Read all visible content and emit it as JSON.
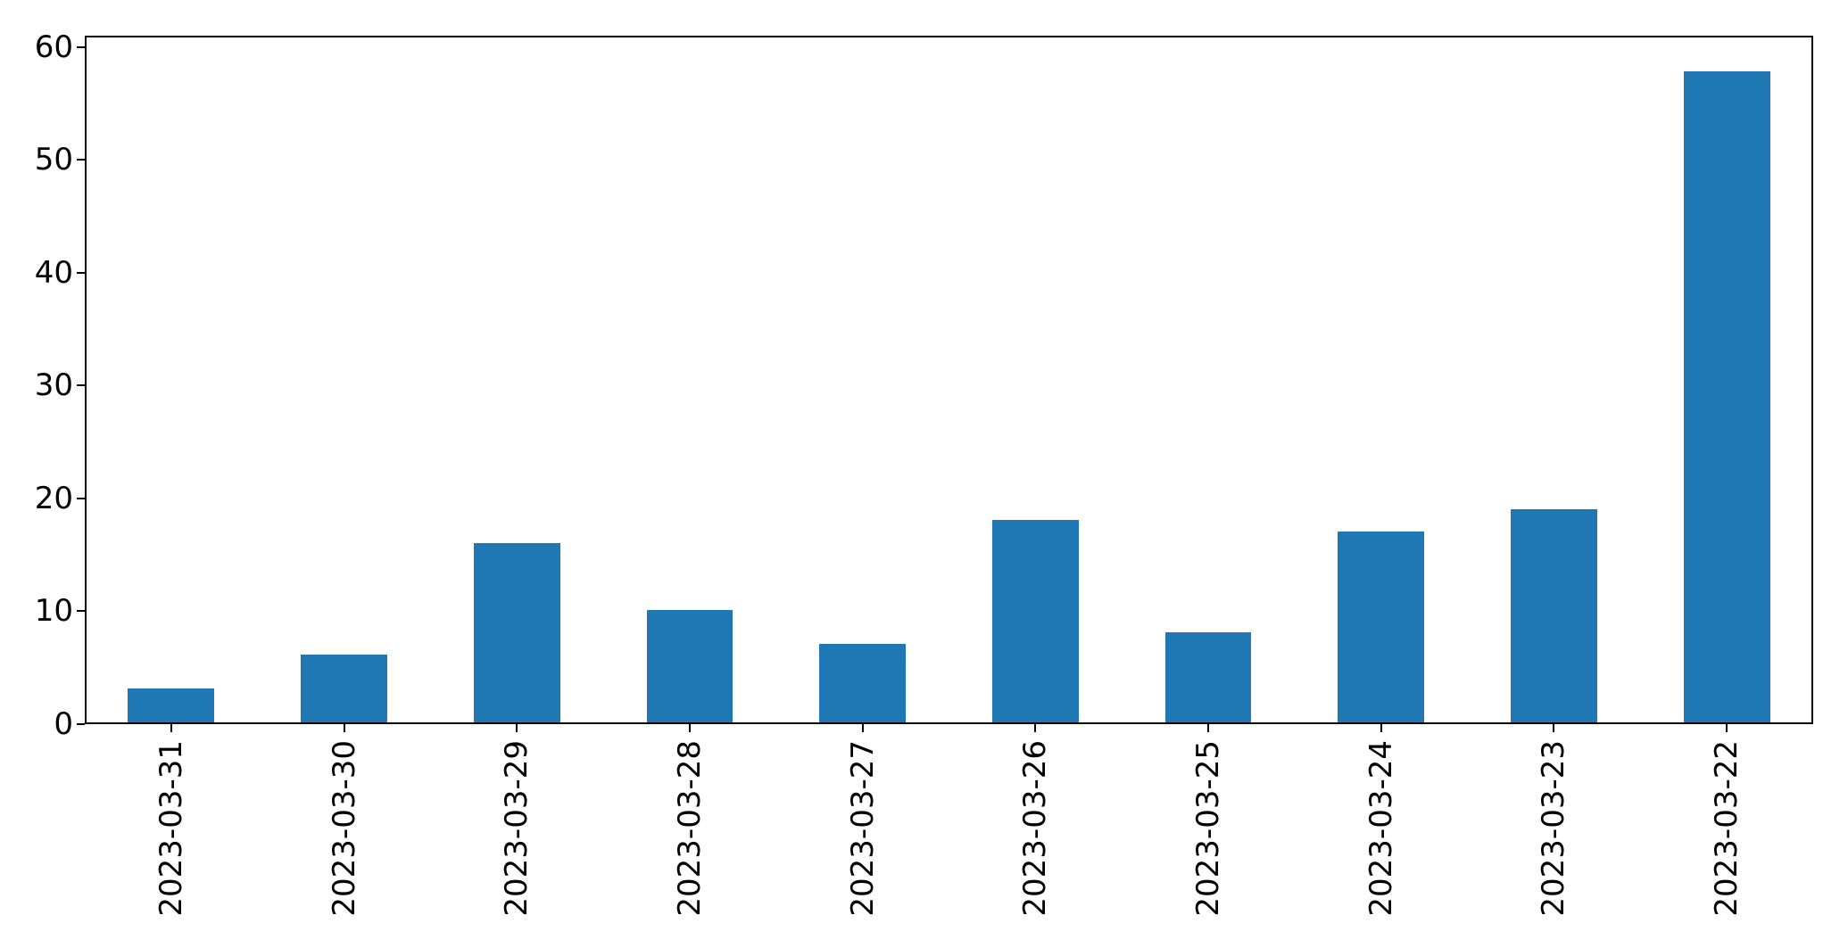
{
  "figure": {
    "background": "#ffffff",
    "title": ""
  },
  "chart_data": {
    "type": "bar",
    "title": "",
    "xlabel": "",
    "ylabel": "",
    "categories": [
      "2023-03-31",
      "2023-03-30",
      "2023-03-29",
      "2023-03-28",
      "2023-03-27",
      "2023-03-26",
      "2023-03-25",
      "2023-03-24",
      "2023-03-23",
      "2023-03-22"
    ],
    "values": [
      3,
      6,
      16,
      10,
      7,
      18,
      8,
      17,
      19,
      58
    ],
    "yticks": [
      0,
      10,
      20,
      30,
      40,
      50,
      60
    ],
    "ylim": [
      0,
      61
    ],
    "grid": false,
    "legend": null,
    "x_tick_label_rotation": 90,
    "bar_color": "#1f77b4",
    "axis_color": "#000000",
    "tick_label_color": "#000000",
    "bar_width_fraction": 0.5
  }
}
